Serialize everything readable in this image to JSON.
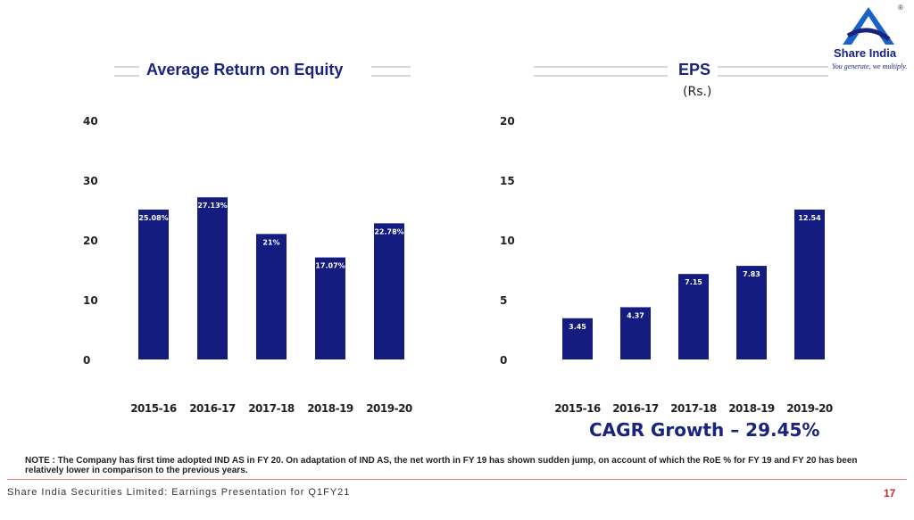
{
  "brand": {
    "name": "Share India",
    "tagline": "You generate, we multiply.",
    "registered": "®"
  },
  "footer": {
    "text": "Share India Securities Limited: Earnings Presentation for Q1FY21",
    "page": "17"
  },
  "note": "NOTE : The Company has first time adopted IND AS in FY 20. On adaptation of IND AS, the net worth in FY 19 has shown sudden jump, on account of which the RoE % for FY 19 and FY 20 has been relatively lower  in comparison to the previous years.",
  "cagr": "CAGR Growth – 29.45%",
  "colors": {
    "bar": "#141c80",
    "title": "#1a237e",
    "accent": "#c62828"
  },
  "chart_data": [
    {
      "type": "bar",
      "title": "Average Return on Equity",
      "categories": [
        "2015-16",
        "2016-17",
        "2017-18",
        "2018-19",
        "2019-20"
      ],
      "values": [
        25.08,
        27.13,
        21,
        17.07,
        22.78
      ],
      "data_labels": [
        "25.08%",
        "27.13%",
        "21%",
        "17.07%",
        "22.78%"
      ],
      "yticks": [
        0,
        10,
        20,
        30,
        40
      ],
      "ylim": [
        0,
        40
      ],
      "grid": false
    },
    {
      "type": "bar",
      "title": "EPS",
      "ylabel": "(Rs.)",
      "categories": [
        "2015-16",
        "2016-17",
        "2017-18",
        "2018-19",
        "2019-20"
      ],
      "values": [
        3.45,
        4.37,
        7.15,
        7.83,
        12.54
      ],
      "data_labels": [
        "3.45",
        "4.37",
        "7.15",
        "7.83",
        "12.54"
      ],
      "yticks": [
        0,
        5,
        10,
        15,
        20
      ],
      "ylim": [
        0,
        20
      ],
      "grid": false
    }
  ]
}
